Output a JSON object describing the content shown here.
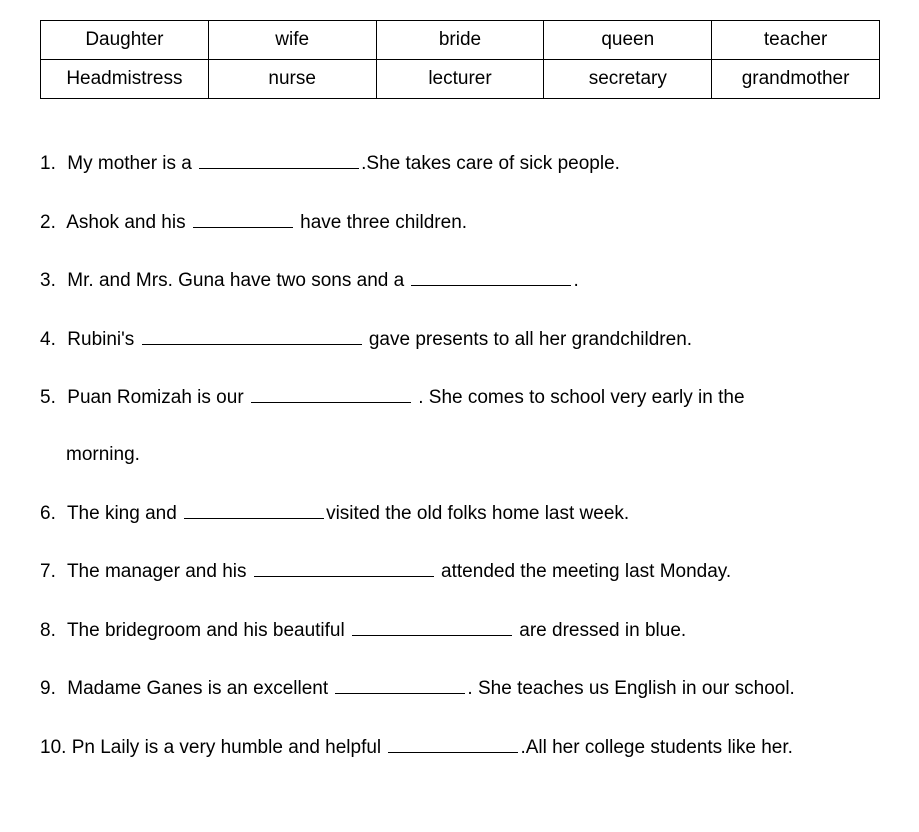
{
  "wordbank": {
    "rows": [
      [
        "Daughter",
        "wife",
        "bride",
        "queen",
        "teacher"
      ],
      [
        "Headmistress",
        "nurse",
        "lecturer",
        "secretary",
        "grandmother"
      ]
    ]
  },
  "questions": [
    {
      "num": "1.",
      "parts": [
        {
          "text": "My mother is a "
        },
        {
          "blank_width": 160
        },
        {
          "text": ".She takes care of sick people."
        }
      ]
    },
    {
      "num": "2.",
      "parts": [
        {
          "text": "Ashok and his "
        },
        {
          "blank_width": 100
        },
        {
          "text": " have three children."
        }
      ]
    },
    {
      "num": "3.",
      "parts": [
        {
          "text": "Mr. and Mrs. Guna have two sons and a "
        },
        {
          "blank_width": 160
        },
        {
          "text": "."
        }
      ]
    },
    {
      "num": "4.",
      "parts": [
        {
          "text": "Rubini's "
        },
        {
          "blank_width": 220
        },
        {
          "text": " gave presents to all her grandchildren."
        }
      ]
    },
    {
      "num": "5.",
      "parts": [
        {
          "text": "Puan Romizah is our "
        },
        {
          "blank_width": 160
        },
        {
          "text": " . She comes to school very early in the"
        },
        {
          "break": true
        },
        {
          "text": "morning."
        }
      ]
    },
    {
      "num": "6.",
      "parts": [
        {
          "text": "The king and "
        },
        {
          "blank_width": 140
        },
        {
          "text": "visited the old folks home last week."
        }
      ]
    },
    {
      "num": "7.",
      "parts": [
        {
          "text": " The manager and his "
        },
        {
          "blank_width": 180
        },
        {
          "text": " attended the meeting last Monday."
        }
      ]
    },
    {
      "num": "8.",
      "parts": [
        {
          "text": " The bridegroom and his beautiful "
        },
        {
          "blank_width": 160
        },
        {
          "text": " are dressed in blue."
        }
      ]
    },
    {
      "num": "9.",
      "parts": [
        {
          "text": " Madame Ganes is an excellent "
        },
        {
          "blank_width": 130
        },
        {
          "text": ". She teaches us English in our school."
        }
      ]
    },
    {
      "num": "10.",
      "parts": [
        {
          "text": "Pn Laily is a very humble and helpful "
        },
        {
          "blank_width": 130
        },
        {
          "text": ".All her  college students like her."
        }
      ]
    }
  ]
}
